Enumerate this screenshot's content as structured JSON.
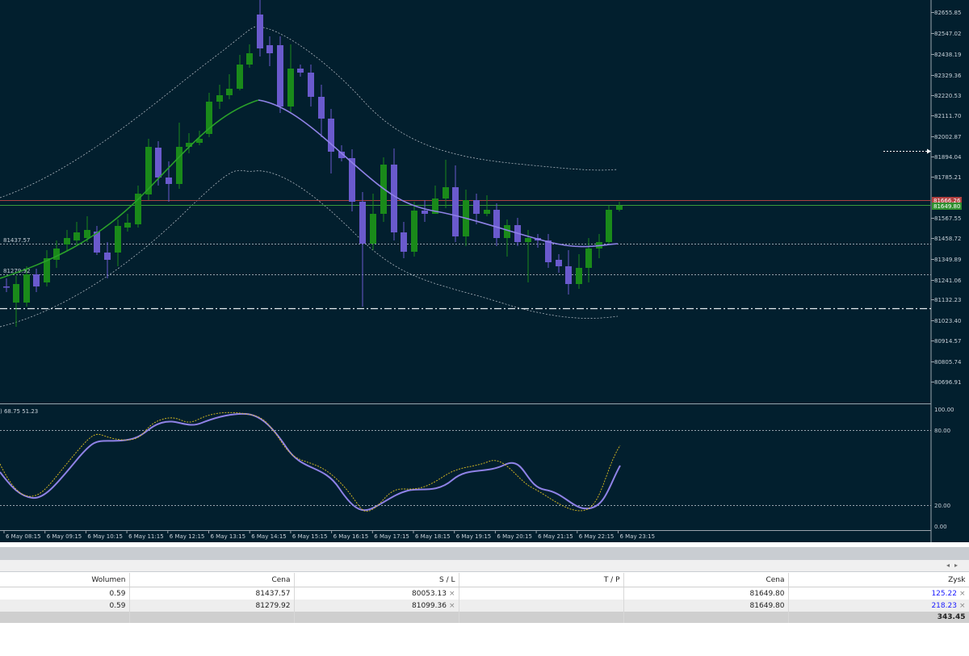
{
  "chart": {
    "indicator_readout": ") 68.75 51.23",
    "price_ticks": [
      "82655.85",
      "82547.02",
      "82438.19",
      "82329.36",
      "82220.53",
      "82111.70",
      "82002.87",
      "81894.04",
      "81785.21",
      "81567.55",
      "81458.72",
      "81349.89",
      "81241.06",
      "81132.23",
      "81023.40",
      "80914.57",
      "80805.74",
      "80696.91"
    ],
    "price_tags": {
      "ask": "81666.26",
      "bid": "81649.80"
    },
    "level_labels": [
      "81437.57",
      "81279.92"
    ],
    "time_ticks": [
      "6 May 08:15",
      "6 May 09:15",
      "6 May 10:15",
      "6 May 11:15",
      "6 May 12:15",
      "6 May 13:15",
      "6 May 14:15",
      "6 May 15:15",
      "6 May 16:15",
      "6 May 17:15",
      "6 May 18:15",
      "6 May 19:15",
      "6 May 20:15",
      "6 May 21:15",
      "6 May 22:15",
      "6 May 23:15"
    ],
    "osc_ticks": [
      "100.00",
      "80.00",
      "20.00",
      "0.00"
    ],
    "colors": {
      "bg": "#021f2e",
      "bull": "#1a8a1a",
      "bear": "#6a5acd",
      "ma_up": "#2aa02a",
      "ma_down": "#8f82e6",
      "osc_main": "#8f82e6",
      "osc_signal": "#e0c020",
      "ask_line": "#b04040",
      "bid_line": "#3a9a3a"
    }
  },
  "positions": {
    "headers": {
      "volume": "Wolumen",
      "price": "Cena",
      "sl": "S / L",
      "tp": "T / P",
      "current": "Cena",
      "profit": "Zysk"
    },
    "rows": [
      {
        "volume": "0.59",
        "price": "81437.57",
        "sl": "80053.13",
        "tp": "",
        "current": "81649.80",
        "profit": "125.22"
      },
      {
        "volume": "0.59",
        "price": "81279.92",
        "sl": "81099.36",
        "tp": "",
        "current": "81649.80",
        "profit": "218.23"
      }
    ],
    "total_profit": "343.45",
    "close_icon": "×"
  }
}
